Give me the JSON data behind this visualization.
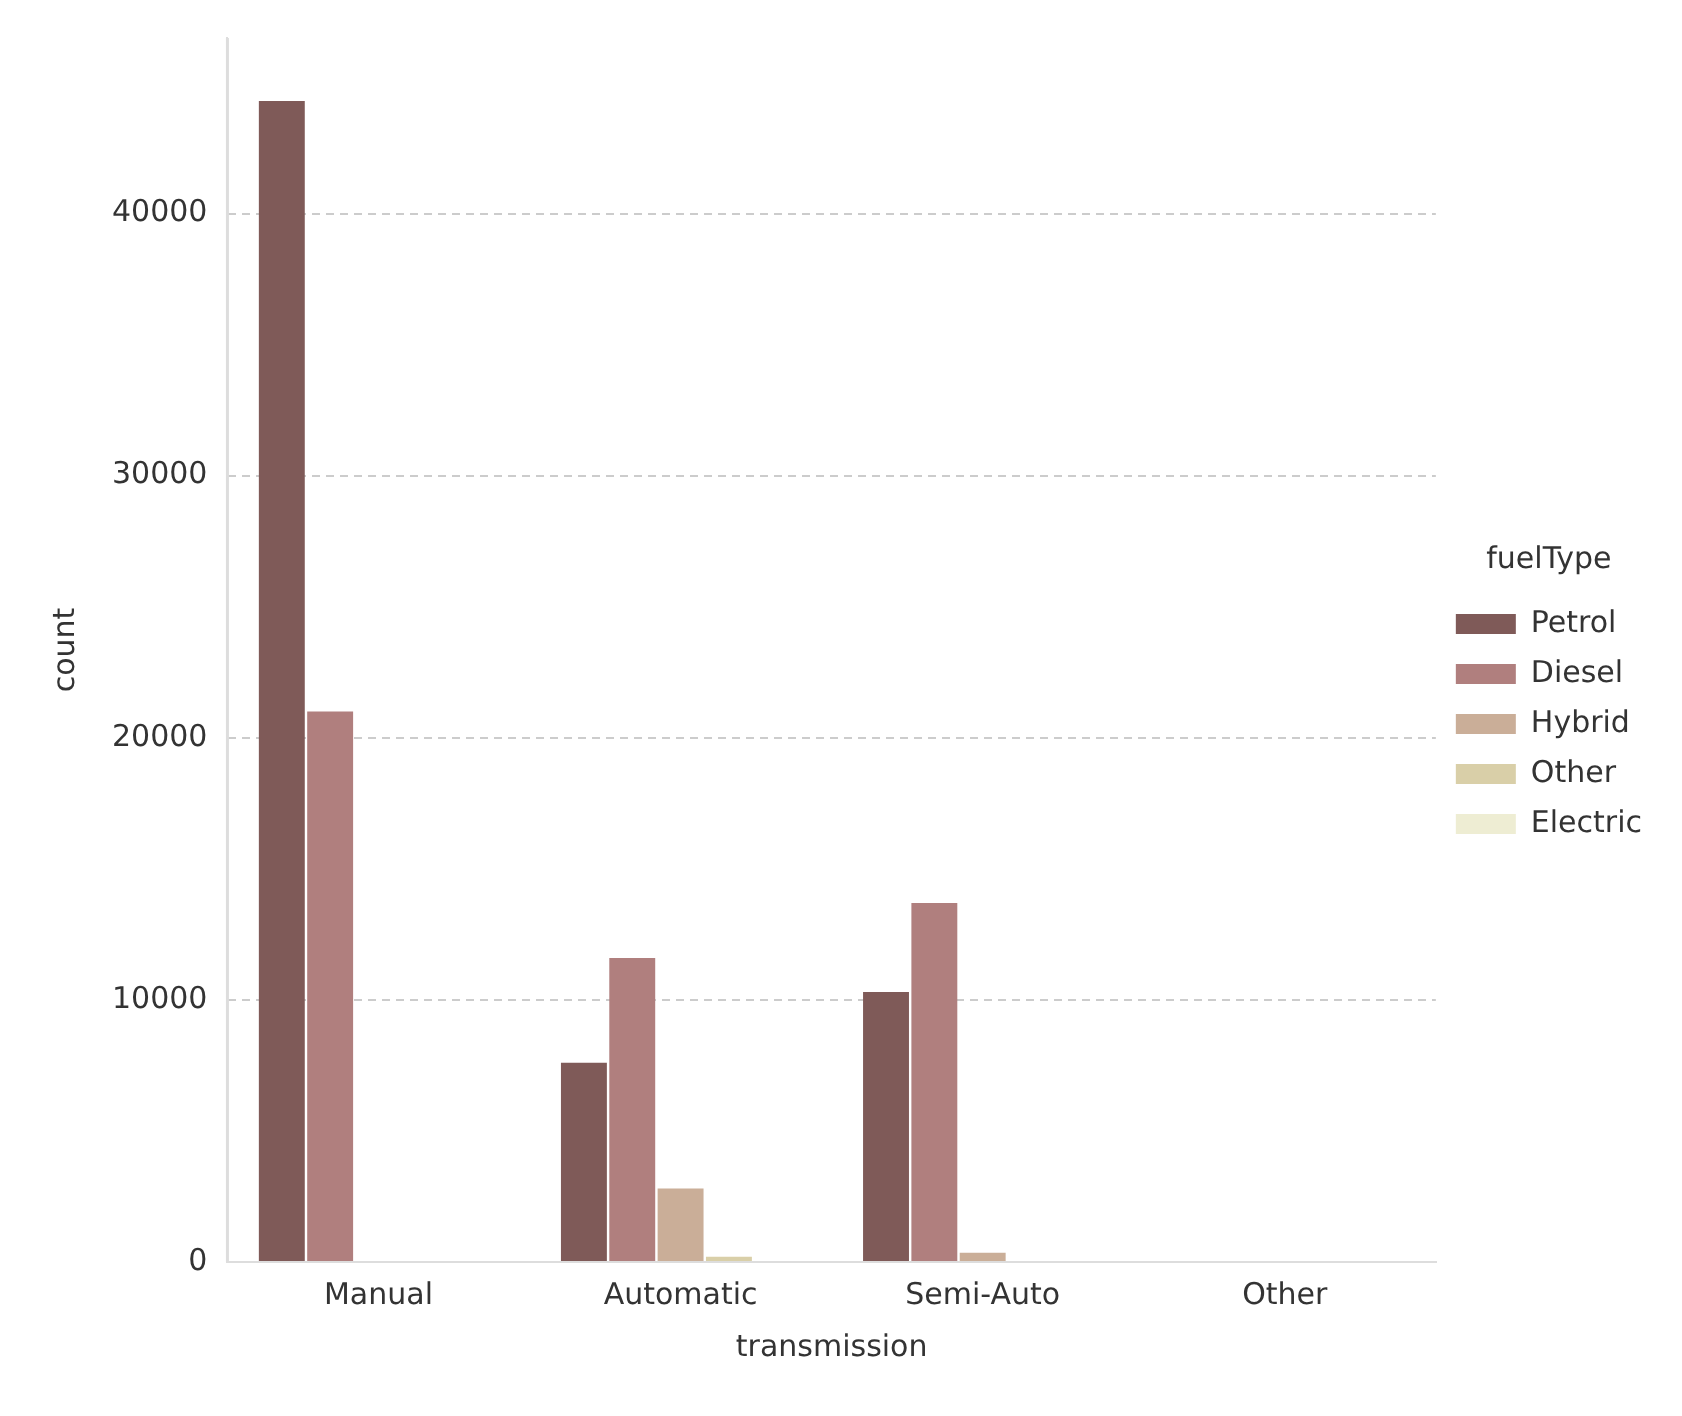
{
  "chart_data": {
    "type": "bar",
    "xlabel": "transmission",
    "ylabel": "count",
    "legend_title": "fuelType",
    "categories": [
      "Manual",
      "Automatic",
      "Semi-Auto",
      "Other"
    ],
    "series": [
      {
        "name": "Petrol",
        "color": "#7f5a58",
        "values": [
          44300,
          7600,
          10300,
          0
        ]
      },
      {
        "name": "Diesel",
        "color": "#b07f7e",
        "values": [
          21000,
          11600,
          13700,
          0
        ]
      },
      {
        "name": "Hybrid",
        "color": "#caae98",
        "values": [
          0,
          2800,
          350,
          0
        ]
      },
      {
        "name": "Other",
        "color": "#d9cfa8",
        "values": [
          0,
          200,
          0,
          0
        ]
      },
      {
        "name": "Electric",
        "color": "#eeedd3",
        "values": [
          0,
          0,
          0,
          0
        ]
      }
    ],
    "ylim": [
      0,
      46700
    ],
    "yticks": [
      0,
      10000,
      20000,
      30000,
      40000
    ],
    "grid": "y",
    "legend": "right"
  }
}
